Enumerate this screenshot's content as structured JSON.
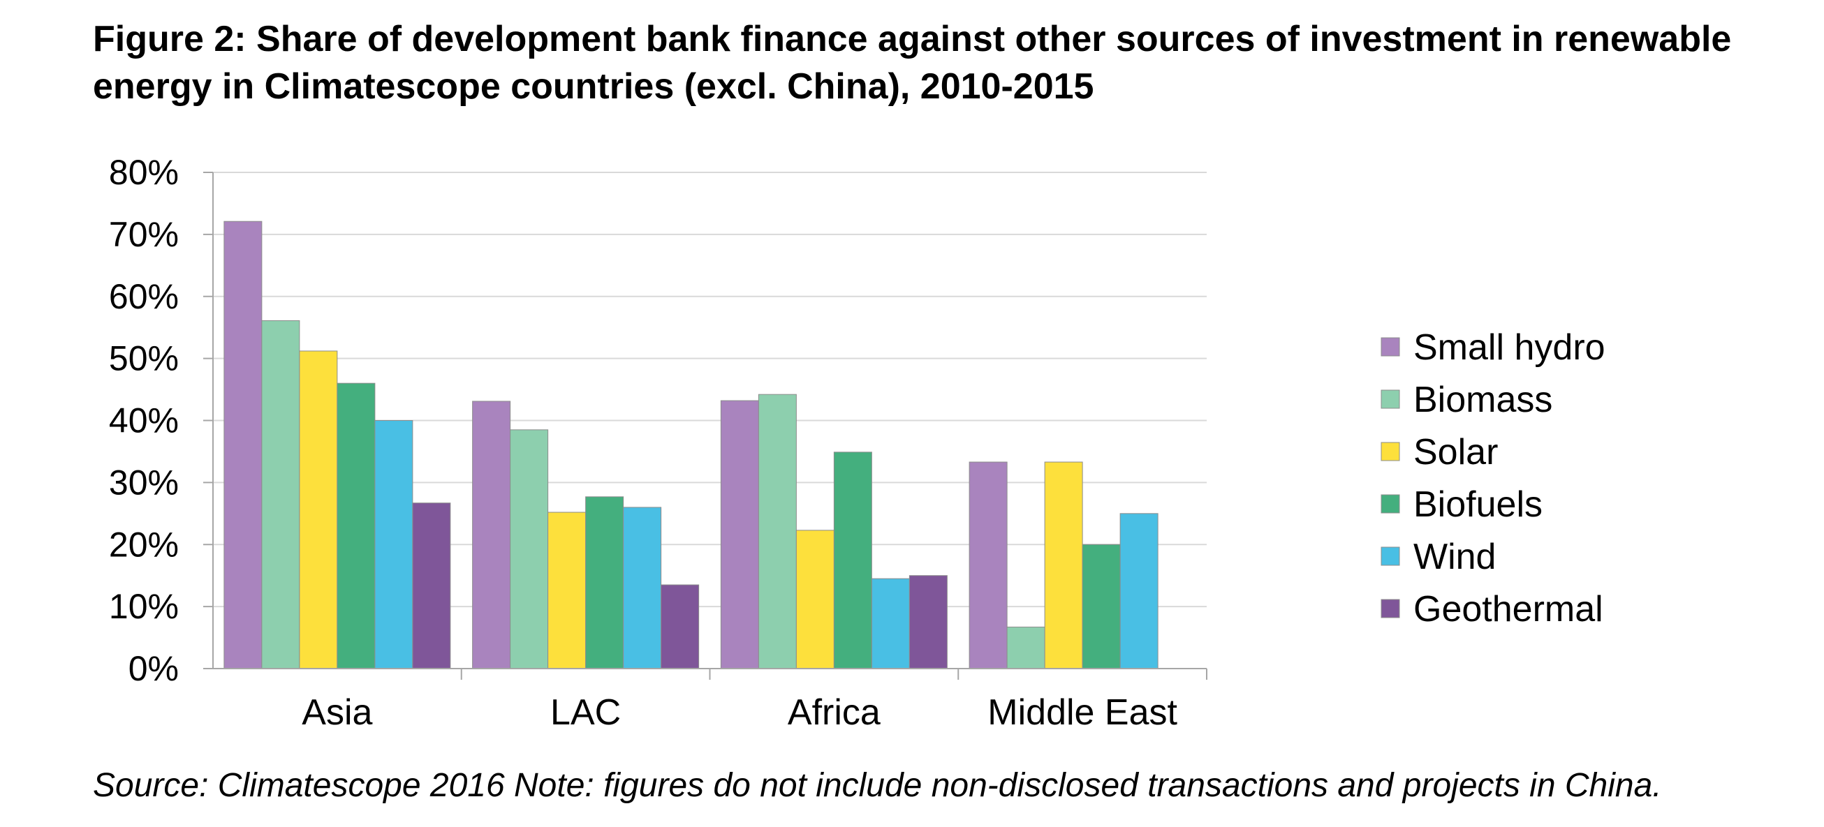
{
  "title": "Figure 2: Share of development bank finance against other sources of investment in renewable energy in Climatescope countries (excl. China), 2010-2015",
  "source_note": "Source: Climatescope 2016 Note: figures do not include non-disclosed transactions and projects in China.",
  "chart_data": {
    "type": "bar",
    "title": "",
    "xlabel": "",
    "ylabel": "",
    "categories": [
      "Asia",
      "LAC",
      "Africa",
      "Middle East"
    ],
    "ylim": [
      0,
      80
    ],
    "yticks": [
      0,
      10,
      20,
      30,
      40,
      50,
      60,
      70,
      80
    ],
    "ytick_labels": [
      "0%",
      "10%",
      "20%",
      "30%",
      "40%",
      "50%",
      "60%",
      "70%",
      "80%"
    ],
    "grid": true,
    "legend_position": "right",
    "series": [
      {
        "name": "Small hydro",
        "color": "#A984BE",
        "values": [
          72.1,
          43.1,
          43.2,
          33.3
        ]
      },
      {
        "name": "Biomass",
        "color": "#8DCFAE",
        "values": [
          56.1,
          38.5,
          44.2,
          6.7
        ]
      },
      {
        "name": "Solar",
        "color": "#FDE03C",
        "values": [
          51.2,
          25.2,
          22.3,
          33.3
        ]
      },
      {
        "name": "Biofuels",
        "color": "#44AF7E",
        "values": [
          46.0,
          27.7,
          34.9,
          20.0
        ]
      },
      {
        "name": "Wind",
        "color": "#49BFE4",
        "values": [
          40.0,
          26.0,
          14.5,
          25.0
        ]
      },
      {
        "name": "Geothermal",
        "color": "#7F5699",
        "values": [
          26.7,
          13.5,
          15.0,
          null
        ]
      }
    ]
  }
}
